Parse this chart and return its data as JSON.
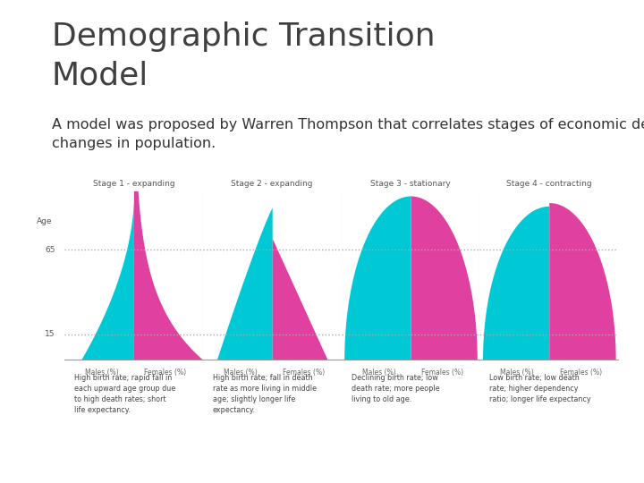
{
  "title_line1": "Demographic Transition",
  "title_line2": "Model",
  "subtitle": "A model was proposed by Warren Thompson that correlates stages of economic development with\nchanges in population.",
  "title_color": "#404040",
  "subtitle_color": "#333333",
  "background_color": "#ffffff",
  "footer_color": "#7a9a3a",
  "divider_color": "#aaaaaa",
  "cyan_color": "#00c8d4",
  "pink_color": "#e040a0",
  "stages": [
    {
      "title": "Stage 1 - expanding",
      "description": "High birth rate; rapid fall in\neach upward age group due\nto high death rates; short\nlife expectancy."
    },
    {
      "title": "Stage 2 - expanding",
      "description": "High birth rate; fall in death\nrate as more living in middle\nage; slightly longer life\nexpectancy."
    },
    {
      "title": "Stage 3 - stationary",
      "description": "Declining birth rate; low\ndeath rate; more people\nliving to old age."
    },
    {
      "title": "Stage 4 - contracting",
      "description": "Low birth rate; low death\nrate; higher dependency\nratio; longer life expectancy"
    }
  ]
}
